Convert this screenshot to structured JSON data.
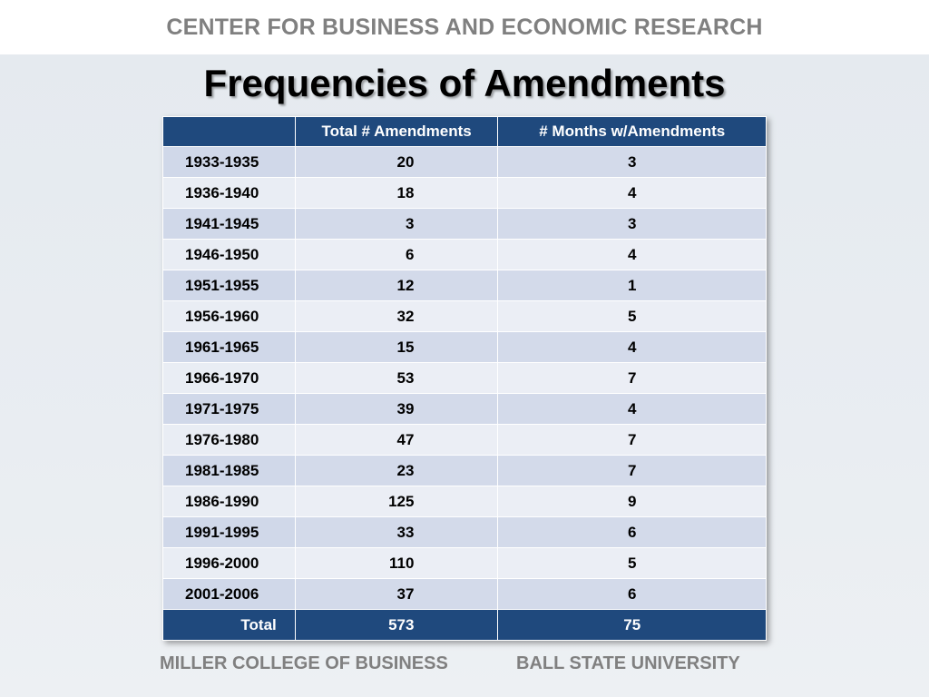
{
  "header": {
    "org_title": "CENTER FOR BUSINESS AND ECONOMIC RESEARCH"
  },
  "slide": {
    "title": "Frequencies of Amendments"
  },
  "table": {
    "columns": [
      "",
      "Total # Amendments",
      "# Months w/Amendments"
    ],
    "rows": [
      {
        "period": "1933-1935",
        "total": "20",
        "months": "3"
      },
      {
        "period": "1936-1940",
        "total": "18",
        "months": "4"
      },
      {
        "period": "1941-1945",
        "total": "3",
        "months": "3"
      },
      {
        "period": "1946-1950",
        "total": "6",
        "months": "4"
      },
      {
        "period": "1951-1955",
        "total": "12",
        "months": "1"
      },
      {
        "period": "1956-1960",
        "total": "32",
        "months": "5"
      },
      {
        "period": "1961-1965",
        "total": "15",
        "months": "4"
      },
      {
        "period": "1966-1970",
        "total": "53",
        "months": "7"
      },
      {
        "period": "1971-1975",
        "total": "39",
        "months": "4"
      },
      {
        "period": "1976-1980",
        "total": "47",
        "months": "7"
      },
      {
        "period": "1981-1985",
        "total": "23",
        "months": "7"
      },
      {
        "period": "1986-1990",
        "total": "125",
        "months": "9"
      },
      {
        "period": "1991-1995",
        "total": "33",
        "months": "6"
      },
      {
        "period": "1996-2000",
        "total": "110",
        "months": "5"
      },
      {
        "period": "2001-2006",
        "total": "37",
        "months": "6"
      }
    ],
    "total_row": {
      "label": "Total",
      "total": "573",
      "months": "75"
    }
  },
  "footer": {
    "left": "MILLER COLLEGE OF BUSINESS",
    "right": "BALL STATE UNIVERSITY"
  },
  "colors": {
    "header_fill": "#1f497d",
    "row_odd": "#d0d8e9",
    "row_even": "#e9edf4",
    "muted_text": "#808080"
  }
}
